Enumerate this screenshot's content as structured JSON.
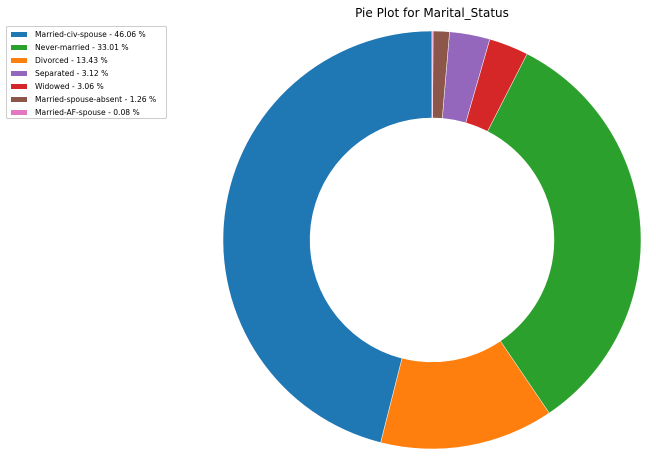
{
  "chart_data": {
    "type": "pie",
    "variant": "donut",
    "title": "Pie Plot for Marital_Status",
    "legend_position": "top-left",
    "start_angle_deg": 90,
    "direction": "counterclockwise",
    "slices": [
      {
        "label": "Married-civ-spouse",
        "value": 46.06,
        "legend_text": "Married-civ-spouse - 46.06 %",
        "color": "#1f77b4"
      },
      {
        "label": "Divorced",
        "value": 13.43,
        "legend_text": "Divorced - 13.43 %",
        "color": "#ff7f0e"
      },
      {
        "label": "Never-married",
        "value": 33.01,
        "legend_text": "Never-married - 33.01 %",
        "color": "#2ca02c"
      },
      {
        "label": "Widowed",
        "value": 3.06,
        "legend_text": "Widowed - 3.06 %",
        "color": "#d62728"
      },
      {
        "label": "Separated",
        "value": 3.12,
        "legend_text": "Separated - 3.12 %",
        "color": "#9467bd"
      },
      {
        "label": "Married-spouse-absent",
        "value": 1.26,
        "legend_text": "Married-spouse-absent - 1.26 %",
        "color": "#8c564b"
      },
      {
        "label": "Married-AF-spouse",
        "value": 0.08,
        "legend_text": "Married-AF-spouse - 0.08 %",
        "color": "#e377c2"
      }
    ],
    "legend_order": [
      "Married-civ-spouse",
      "Never-married",
      "Divorced",
      "Separated",
      "Widowed",
      "Married-spouse-absent",
      "Married-AF-spouse"
    ]
  }
}
